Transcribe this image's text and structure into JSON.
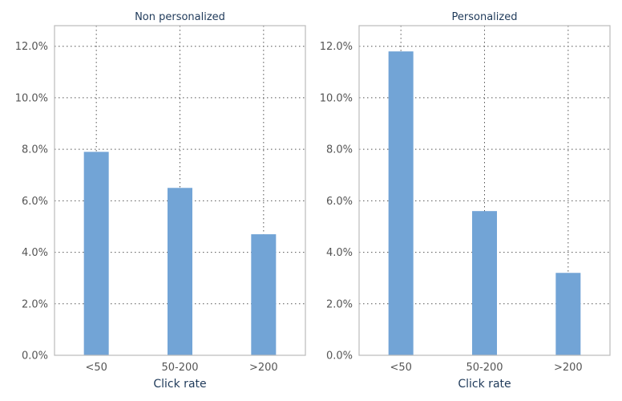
{
  "chart_data": [
    {
      "type": "bar",
      "title": "Non personalized",
      "xlabel": "Click rate",
      "ylabel": "",
      "categories": [
        "<50",
        "50-200",
        ">200"
      ],
      "values": [
        7.9,
        6.5,
        4.7
      ],
      "ylim": [
        0,
        12.8
      ],
      "yticks": [
        "0.0%",
        "2.0%",
        "4.0%",
        "6.0%",
        "8.0%",
        "10.0%",
        "12.0%"
      ],
      "grid": true,
      "color": "#72a4d6"
    },
    {
      "type": "bar",
      "title": "Personalized",
      "xlabel": "Click rate",
      "ylabel": "",
      "categories": [
        "<50",
        "50-200",
        ">200"
      ],
      "values": [
        11.8,
        5.6,
        3.2
      ],
      "ylim": [
        0,
        12.8
      ],
      "yticks": [
        "0.0%",
        "2.0%",
        "4.0%",
        "6.0%",
        "8.0%",
        "10.0%",
        "12.0%"
      ],
      "grid": true,
      "color": "#72a4d6"
    }
  ]
}
